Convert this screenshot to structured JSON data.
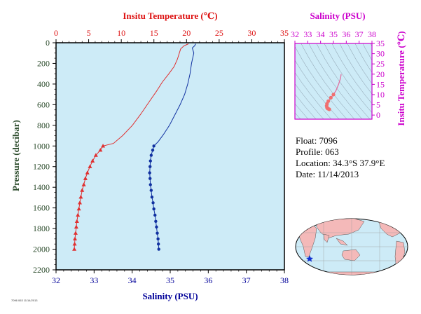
{
  "chart_data": [
    {
      "type": "line",
      "top_axis": {
        "label": "Insitu Temperature (℃)",
        "range": [
          0,
          35
        ],
        "ticks": [
          "0",
          "5",
          "10",
          "15",
          "20",
          "25",
          "30",
          "35"
        ],
        "color": "#dd1111"
      },
      "bottom_axis": {
        "label": "Salinity (PSU)",
        "range": [
          32,
          38
        ],
        "ticks": [
          "32",
          "33",
          "34",
          "35",
          "36",
          "37",
          "38"
        ],
        "color": "#000099"
      },
      "left_axis": {
        "label": "Pressure (decibar)",
        "range": [
          0,
          2200
        ],
        "inverted": true,
        "ticks": [
          "0",
          "200",
          "400",
          "600",
          "800",
          "1000",
          "1200",
          "1400",
          "1600",
          "1800",
          "2000",
          "2200"
        ],
        "color": "#000000"
      },
      "grid": false,
      "background": "#cdebf7",
      "series": [
        {
          "quantity": "temperature",
          "color": "#e03030",
          "marker": "triangle",
          "profile": [
            [
              20.3,
              10
            ],
            [
              19.6,
              30
            ],
            [
              19.1,
              60
            ],
            [
              18.9,
              100
            ],
            [
              18.6,
              160
            ],
            [
              18.1,
              230
            ],
            [
              17.3,
              300
            ],
            [
              16.3,
              380
            ],
            [
              15.4,
              470
            ],
            [
              14.3,
              570
            ],
            [
              13.0,
              690
            ],
            [
              11.7,
              800
            ],
            [
              10.2,
              900
            ],
            [
              8.8,
              975
            ]
          ],
          "markers": [
            [
              7.2,
              1000
            ],
            [
              6.8,
              1040
            ],
            [
              6.1,
              1090
            ],
            [
              5.6,
              1145
            ],
            [
              5.2,
              1200
            ],
            [
              4.8,
              1260
            ],
            [
              4.5,
              1315
            ],
            [
              4.25,
              1375
            ],
            [
              4.0,
              1430
            ],
            [
              3.8,
              1495
            ],
            [
              3.65,
              1550
            ],
            [
              3.5,
              1610
            ],
            [
              3.35,
              1670
            ],
            [
              3.2,
              1730
            ],
            [
              3.1,
              1785
            ],
            [
              3.0,
              1845
            ],
            [
              2.9,
              1900
            ],
            [
              2.85,
              1950
            ],
            [
              2.8,
              2000
            ]
          ]
        },
        {
          "quantity": "salinity",
          "color": "#1030a0",
          "marker": "circle",
          "profile": [
            [
              35.67,
              10
            ],
            [
              35.64,
              30
            ],
            [
              35.58,
              50
            ],
            [
              35.62,
              100
            ],
            [
              35.56,
              200
            ],
            [
              35.52,
              300
            ],
            [
              35.46,
              400
            ],
            [
              35.38,
              500
            ],
            [
              35.26,
              600
            ],
            [
              35.12,
              700
            ],
            [
              34.98,
              800
            ],
            [
              34.82,
              890
            ],
            [
              34.68,
              960
            ]
          ],
          "markers": [
            [
              34.57,
              1000
            ],
            [
              34.54,
              1040
            ],
            [
              34.5,
              1090
            ],
            [
              34.48,
              1145
            ],
            [
              34.47,
              1200
            ],
            [
              34.46,
              1260
            ],
            [
              34.47,
              1315
            ],
            [
              34.48,
              1375
            ],
            [
              34.5,
              1430
            ],
            [
              34.52,
              1495
            ],
            [
              34.55,
              1550
            ],
            [
              34.57,
              1610
            ],
            [
              34.6,
              1670
            ],
            [
              34.62,
              1730
            ],
            [
              34.64,
              1785
            ],
            [
              34.66,
              1845
            ],
            [
              34.68,
              1900
            ],
            [
              34.69,
              1950
            ],
            [
              34.7,
              2000
            ]
          ]
        }
      ]
    },
    {
      "type": "scatter",
      "top_axis": {
        "label": "Salinity (PSU)",
        "range": [
          32,
          38
        ],
        "ticks": [
          "32",
          "33",
          "34",
          "35",
          "36",
          "37",
          "38"
        ],
        "color": "#cc00cc"
      },
      "right_axis": {
        "label": "Insitu Temperature (℃)",
        "range": [
          -2,
          35
        ],
        "ticks": [
          "35",
          "30",
          "25",
          "20",
          "15",
          "10",
          "5",
          "0"
        ],
        "color": "#cc00cc"
      },
      "background": "#cdebf7",
      "series": [
        {
          "quantity": "T-S",
          "color": "#e070a0",
          "points": [
            [
              35.6,
              20
            ],
            [
              35.55,
              18
            ],
            [
              35.4,
              15
            ],
            [
              35.2,
              12
            ],
            [
              35.0,
              10
            ],
            [
              34.8,
              8.5
            ],
            [
              34.6,
              6.8
            ],
            [
              34.5,
              5.5
            ],
            [
              34.47,
              4.5
            ],
            [
              34.5,
              3.6
            ],
            [
              34.55,
              3.2
            ],
            [
              34.62,
              3.0
            ],
            [
              34.68,
              2.8
            ]
          ]
        }
      ]
    }
  ],
  "info": {
    "float": "Float:  7096",
    "profile": "Profile:  063",
    "location": "Location:  34.3°S  37.9°E",
    "date": "Date:  11/14/2013"
  },
  "footnote": "7096 063 11/14/2013"
}
